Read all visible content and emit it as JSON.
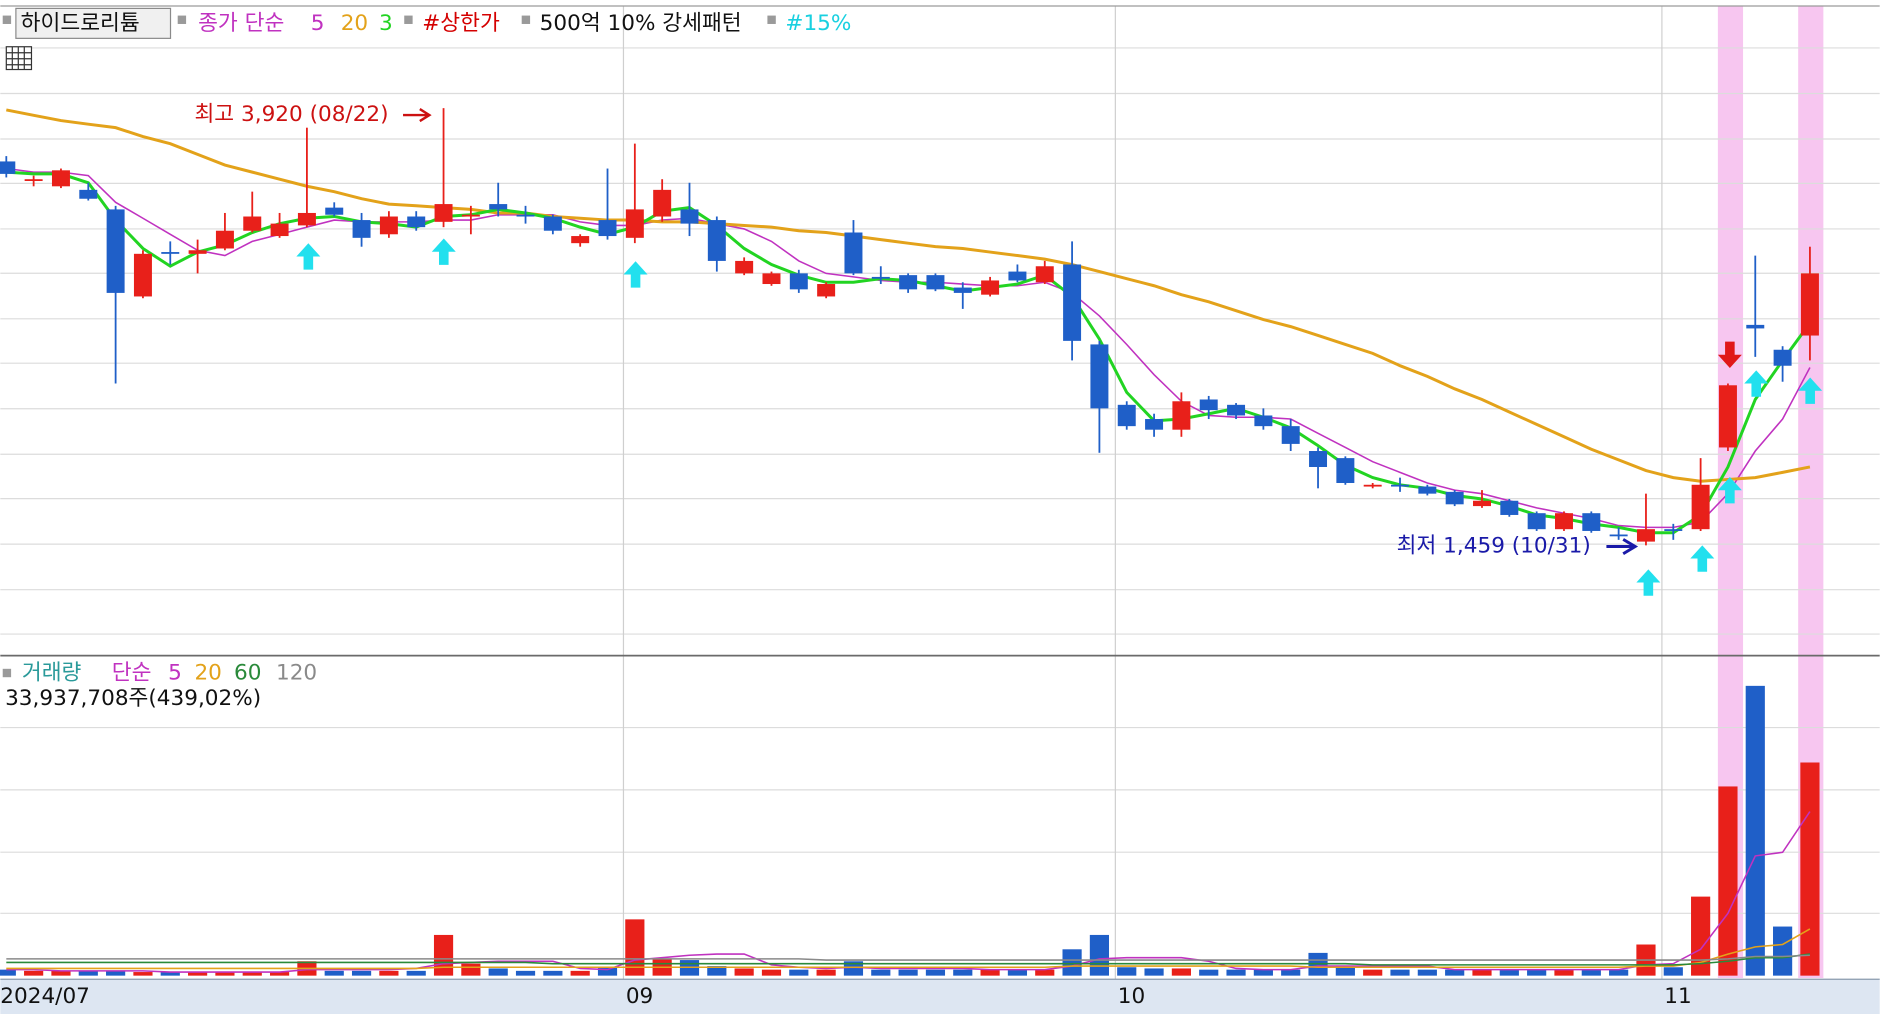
{
  "chart_data": {
    "type": "candlestick",
    "title": "하이드로리튬",
    "categories": [
      "2024/07",
      null,
      null,
      null,
      null,
      null,
      null,
      null,
      null,
      null,
      null,
      null,
      null,
      null,
      null,
      null,
      null,
      null,
      null,
      null,
      null,
      null,
      null,
      "09",
      null,
      null,
      null,
      null,
      null,
      null,
      null,
      null,
      null,
      null,
      null,
      null,
      null,
      null,
      null,
      null,
      null,
      "10",
      null,
      null,
      null,
      null,
      null,
      null,
      null,
      null,
      null,
      null,
      null,
      null,
      null,
      null,
      null,
      null,
      null,
      null,
      null,
      "11",
      null,
      null,
      null,
      null,
      null
    ],
    "open": [
      3620,
      3510,
      3480,
      3460,
      3350,
      2860,
      3110,
      3100,
      3130,
      3230,
      3200,
      3260,
      3360,
      3290,
      3210,
      3310,
      3280,
      3310,
      3380,
      3320,
      3310,
      3160,
      3290,
      3190,
      3310,
      3350,
      3290,
      2990,
      2930,
      2990,
      2860,
      3220,
      2970,
      2980,
      2980,
      2910,
      2870,
      3000,
      2940,
      3040,
      2590,
      2250,
      2170,
      2110,
      2280,
      2250,
      2190,
      2130,
      1990,
      1950,
      1790,
      1800,
      1790,
      1760,
      1680,
      1710,
      1640,
      1550,
      1640,
      1520,
      1480,
      1550,
      1550,
      2010,
      2700,
      2560,
      2640
    ],
    "high": [
      3650,
      3540,
      3580,
      3500,
      3370,
      3120,
      3170,
      3180,
      3330,
      3450,
      3330,
      3810,
      3390,
      3330,
      3340,
      3340,
      3920,
      3370,
      3500,
      3370,
      3320,
      3210,
      3580,
      3720,
      3520,
      3500,
      3310,
      3080,
      3000,
      3010,
      2940,
      3290,
      3030,
      2990,
      2990,
      2940,
      2970,
      3040,
      3060,
      3170,
      2610,
      2270,
      2200,
      2320,
      2300,
      2260,
      2230,
      2170,
      2010,
      1960,
      1810,
      1840,
      1800,
      1770,
      1770,
      1720,
      1650,
      1650,
      1650,
      1560,
      1750,
      1580,
      1950,
      2370,
      3090,
      2580,
      3140
    ],
    "low": [
      3530,
      3480,
      3470,
      3400,
      2370,
      2850,
      3040,
      2990,
      3120,
      3220,
      3190,
      3250,
      3310,
      3140,
      3190,
      3230,
      3250,
      3210,
      3310,
      3270,
      3210,
      3140,
      3180,
      3160,
      3280,
      3200,
      3000,
      2980,
      2920,
      2880,
      2850,
      2980,
      2930,
      2880,
      2890,
      2790,
      2860,
      2940,
      2930,
      2500,
      1980,
      2110,
      2070,
      2070,
      2170,
      2170,
      2110,
      1990,
      1780,
      1800,
      1780,
      1760,
      1740,
      1680,
      1670,
      1620,
      1540,
      1540,
      1530,
      1490,
      1459,
      1490,
      1540,
      1990,
      2520,
      2380,
      2500
    ],
    "close": [
      3550,
      3520,
      3570,
      3410,
      2880,
      3100,
      3100,
      3120,
      3230,
      3310,
      3270,
      3330,
      3320,
      3190,
      3310,
      3250,
      3380,
      3320,
      3350,
      3310,
      3230,
      3200,
      3200,
      3350,
      3460,
      3270,
      3060,
      3060,
      2990,
      2900,
      2930,
      2990,
      2960,
      2900,
      2900,
      2880,
      2950,
      2950,
      3030,
      2610,
      2230,
      2130,
      2110,
      2270,
      2220,
      2190,
      2130,
      2030,
      1900,
      1810,
      1800,
      1790,
      1750,
      1690,
      1710,
      1630,
      1550,
      1640,
      1540,
      1510,
      1550,
      1540,
      1800,
      2360,
      2680,
      2470,
      2990
    ],
    "up_color": "#e8201a",
    "down_color": "#1f5fc8",
    "ylim": [
      845,
      4495
    ],
    "ma_label": "종가 단순",
    "moving_averages": [
      {
        "name": "5",
        "color": "#c032c0",
        "values": [
          3580,
          3560,
          3560,
          3540,
          3390,
          3300,
          3210,
          3120,
          3090,
          3170,
          3210,
          3250,
          3290,
          3280,
          3280,
          3280,
          3290,
          3290,
          3320,
          3320,
          3320,
          3280,
          3260,
          3260,
          3290,
          3300,
          3270,
          3240,
          3170,
          3060,
          2990,
          2970,
          2950,
          2940,
          2940,
          2930,
          2920,
          2920,
          2940,
          2880,
          2750,
          2590,
          2420,
          2270,
          2190,
          2180,
          2180,
          2170,
          2090,
          2010,
          1930,
          1870,
          1810,
          1770,
          1750,
          1710,
          1670,
          1640,
          1610,
          1570,
          1560,
          1560,
          1590,
          1750,
          1990,
          2170,
          2460
        ]
      },
      {
        "name": "20",
        "color": "#e3a21a",
        "values": [
          3910,
          3880,
          3850,
          3830,
          3810,
          3760,
          3720,
          3660,
          3600,
          3560,
          3520,
          3480,
          3450,
          3410,
          3380,
          3370,
          3360,
          3350,
          3330,
          3330,
          3310,
          3300,
          3290,
          3290,
          3280,
          3280,
          3270,
          3260,
          3250,
          3230,
          3220,
          3200,
          3180,
          3160,
          3140,
          3130,
          3110,
          3090,
          3070,
          3040,
          3000,
          2960,
          2920,
          2870,
          2830,
          2780,
          2730,
          2690,
          2640,
          2590,
          2540,
          2470,
          2410,
          2340,
          2280,
          2210,
          2140,
          2070,
          2000,
          1940,
          1880,
          1840,
          1820,
          1830,
          1840,
          1870,
          1900
        ]
      },
      {
        "name": "3",
        "color": "#22d422",
        "values": [
          3560,
          3550,
          3550,
          3500,
          3290,
          3130,
          3030,
          3110,
          3150,
          3220,
          3270,
          3300,
          3310,
          3280,
          3270,
          3250,
          3310,
          3320,
          3350,
          3330,
          3300,
          3250,
          3210,
          3250,
          3340,
          3360,
          3260,
          3130,
          3040,
          2980,
          2940,
          2940,
          2960,
          2950,
          2920,
          2890,
          2910,
          2930,
          2980,
          2860,
          2620,
          2320,
          2160,
          2170,
          2200,
          2230,
          2180,
          2120,
          2020,
          1910,
          1840,
          1800,
          1780,
          1740,
          1720,
          1680,
          1630,
          1610,
          1580,
          1560,
          1530,
          1530,
          1630,
          1900,
          2280,
          2500,
          2710
        ]
      }
    ],
    "indicators": [
      {
        "name": "#상한가",
        "color": "#d40000"
      },
      {
        "name": "500억 10% 강세패턴",
        "color": "#111111"
      },
      {
        "name": "#15%",
        "color": "#18d0e0"
      }
    ],
    "annotations": [
      {
        "text": "최고 3,920 (08/22)",
        "color": "#cc1111"
      },
      {
        "text": "최저 1,459 (10/31)",
        "color": "#1a1aa8"
      }
    ],
    "volume": {
      "title": "거래량",
      "title_color": "#2a9a9a",
      "ma_label": "단순",
      "readout": "33,937,708주(439,02%)",
      "ylim": [
        0,
        50000000
      ],
      "values": [
        953000,
        763000,
        763000,
        763000,
        763000,
        572000,
        572000,
        572000,
        572000,
        572000,
        572000,
        2288000,
        763000,
        763000,
        763000,
        763000,
        6482000,
        1907000,
        1144000,
        763000,
        763000,
        763000,
        1335000,
        8961000,
        2669000,
        2479000,
        1525000,
        1144000,
        953000,
        953000,
        953000,
        2288000,
        953000,
        953000,
        953000,
        953000,
        953000,
        953000,
        953000,
        4195000,
        6482000,
        1335000,
        1144000,
        1144000,
        953000,
        953000,
        953000,
        953000,
        3623000,
        1335000,
        953000,
        953000,
        953000,
        953000,
        953000,
        953000,
        953000,
        953000,
        953000,
        953000,
        4957000,
        1335000,
        12584000,
        30124000,
        46140000,
        7817000,
        33937708
      ],
      "moving_averages": [
        {
          "name": "5",
          "color": "#c032c0",
          "values": [
            950000,
            950000,
            760000,
            760000,
            760000,
            760000,
            570000,
            570000,
            570000,
            570000,
            570000,
            950000,
            950000,
            950000,
            950000,
            1140000,
            1910000,
            2100000,
            2290000,
            2290000,
            2290000,
            1140000,
            950000,
            2480000,
            2860000,
            3240000,
            3430000,
            3430000,
            1720000,
            1330000,
            1140000,
            1330000,
            1140000,
            1140000,
            1140000,
            1140000,
            950000,
            950000,
            950000,
            1530000,
            2670000,
            2860000,
            2860000,
            2860000,
            2290000,
            1140000,
            950000,
            950000,
            1530000,
            1530000,
            1530000,
            1530000,
            1530000,
            950000,
            950000,
            950000,
            950000,
            950000,
            950000,
            950000,
            1720000,
            1910000,
            4200000,
            9920000,
            19070000,
            19640000,
            26130000
          ]
        },
        {
          "name": "20",
          "color": "#e3a21a",
          "values": [
            1140000,
            1140000,
            1140000,
            1140000,
            1140000,
            1140000,
            1140000,
            1140000,
            1140000,
            1140000,
            1140000,
            1140000,
            1140000,
            1140000,
            1140000,
            1140000,
            1330000,
            1330000,
            1330000,
            1330000,
            1330000,
            1330000,
            1330000,
            1330000,
            1330000,
            1330000,
            1330000,
            1330000,
            1330000,
            1330000,
            1330000,
            1330000,
            1330000,
            1330000,
            1330000,
            1330000,
            1330000,
            1330000,
            1330000,
            1530000,
            1530000,
            1530000,
            1530000,
            1530000,
            1530000,
            1530000,
            1530000,
            1530000,
            1330000,
            1330000,
            1330000,
            1330000,
            1330000,
            1330000,
            1330000,
            1330000,
            1330000,
            1330000,
            1330000,
            1330000,
            1530000,
            1530000,
            2100000,
            3430000,
            4580000,
            4960000,
            7440000
          ]
        },
        {
          "name": "60",
          "color": "#2a8a3a",
          "values": [
            2100000,
            2100000,
            2100000,
            2100000,
            2100000,
            2100000,
            2100000,
            2100000,
            2100000,
            2100000,
            2100000,
            2100000,
            2100000,
            2100000,
            2100000,
            2100000,
            2100000,
            2100000,
            2100000,
            2100000,
            1910000,
            1910000,
            1910000,
            1910000,
            1910000,
            1910000,
            1910000,
            1910000,
            1910000,
            1910000,
            1910000,
            1910000,
            1910000,
            1910000,
            1910000,
            1910000,
            1910000,
            1910000,
            1910000,
            1910000,
            1910000,
            1910000,
            1910000,
            1910000,
            1910000,
            1910000,
            1910000,
            1910000,
            1910000,
            1910000,
            1720000,
            1720000,
            1720000,
            1720000,
            1720000,
            1720000,
            1720000,
            1720000,
            1720000,
            1720000,
            1720000,
            1720000,
            1910000,
            2290000,
            2860000,
            2860000,
            3430000
          ]
        },
        {
          "name": "120",
          "color": "#8a8a8a",
          "values": [
            2670000,
            2670000,
            2670000,
            2670000,
            2670000,
            2670000,
            2670000,
            2670000,
            2670000,
            2670000,
            2670000,
            2670000,
            2670000,
            2670000,
            2670000,
            2670000,
            2670000,
            2670000,
            2670000,
            2670000,
            2670000,
            2670000,
            2670000,
            2670000,
            2670000,
            2670000,
            2670000,
            2670000,
            2670000,
            2670000,
            2480000,
            2480000,
            2480000,
            2480000,
            2480000,
            2480000,
            2480000,
            2480000,
            2480000,
            2480000,
            2480000,
            2480000,
            2480000,
            2480000,
            2480000,
            2480000,
            2480000,
            2480000,
            2480000,
            2480000,
            2480000,
            2480000,
            2480000,
            2480000,
            2480000,
            2480000,
            2480000,
            2480000,
            2480000,
            2480000,
            2480000,
            2480000,
            2480000,
            2670000,
            3050000,
            3050000,
            3240000
          ]
        }
      ]
    }
  }
}
